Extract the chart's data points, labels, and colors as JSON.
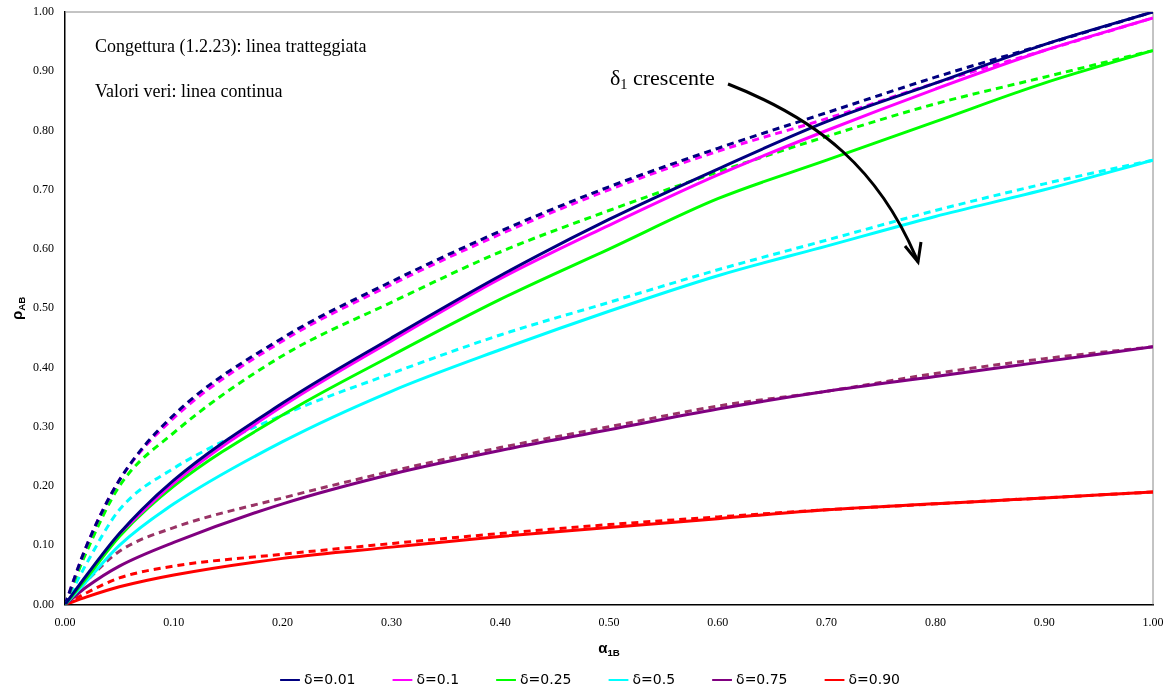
{
  "chart_data": {
    "type": "line",
    "xlabel": "α$_{1B}$",
    "ylabel": "ρ$_{AB}$",
    "x": [
      0,
      0.02,
      0.05,
      0.1,
      0.2,
      0.3,
      0.4,
      0.5,
      0.6,
      0.7,
      0.8,
      0.9,
      1.0
    ],
    "xlim": [
      0,
      1
    ],
    "ylim": [
      0,
      1
    ],
    "xticks": [
      {
        "value": 0,
        "label": "0.00"
      },
      {
        "value": 0.1,
        "label": "0.10"
      },
      {
        "value": 0.2,
        "label": "0.20"
      },
      {
        "value": 0.3,
        "label": "0.30"
      },
      {
        "value": 0.4,
        "label": "0.40"
      },
      {
        "value": 0.5,
        "label": "0.50"
      },
      {
        "value": 0.6,
        "label": "0.60"
      },
      {
        "value": 0.7,
        "label": "0.70"
      },
      {
        "value": 0.8,
        "label": "0.80"
      },
      {
        "value": 0.9,
        "label": "0.90"
      },
      {
        "value": 1,
        "label": "1.00"
      }
    ],
    "yticks": [
      {
        "value": 0,
        "label": "0.00"
      },
      {
        "value": 0.1,
        "label": "0.10"
      },
      {
        "value": 0.2,
        "label": "0.20"
      },
      {
        "value": 0.3,
        "label": "0.30"
      },
      {
        "value": 0.4,
        "label": "0.40"
      },
      {
        "value": 0.5,
        "label": "0.50"
      },
      {
        "value": 0.6,
        "label": "0.60"
      },
      {
        "value": 0.7,
        "label": "0.70"
      },
      {
        "value": 0.8,
        "label": "0.80"
      },
      {
        "value": 0.9,
        "label": "0.90"
      },
      {
        "value": 1,
        "label": "1.00"
      }
    ],
    "grid": false,
    "legend": "bottom",
    "marker": "none",
    "annotations": [
      "Congettura (1.2.23): linea tratteggiata",
      "Valori veri: linea continua",
      "δ$_{1}$ crescente"
    ],
    "series": [
      {
        "name": "δ=0.01",
        "color": "#000080",
        "line_style": "solid",
        "values": [
          0,
          0.05,
          0.12,
          0.21,
          0.34,
          0.45,
          0.555,
          0.65,
          0.735,
          0.815,
          0.88,
          0.945,
          1.0
        ]
      },
      {
        "name": "δ=0.1",
        "color": "#ff00ff",
        "line_style": "solid",
        "values": [
          null,
          null,
          0.12,
          0.205,
          0.335,
          0.445,
          0.55,
          0.64,
          0.725,
          0.8,
          0.87,
          0.935,
          0.99
        ]
      },
      {
        "name": "δ=0.25",
        "color": "#00ff00",
        "line_style": "solid",
        "values": [
          0,
          0.045,
          0.115,
          0.2,
          0.32,
          0.42,
          0.515,
          0.6,
          0.685,
          0.75,
          0.815,
          0.88,
          0.935
        ]
      },
      {
        "name": "δ=0.5",
        "color": "#00ffff",
        "line_style": "solid",
        "values": [
          0,
          0.04,
          0.1,
          0.17,
          0.275,
          0.36,
          0.43,
          0.495,
          0.555,
          0.605,
          0.655,
          0.7,
          0.75
        ]
      },
      {
        "name": "δ=0.75",
        "color": "#800080",
        "line_style": "solid",
        "values": [
          0,
          0.03,
          0.065,
          0.105,
          0.17,
          0.22,
          0.26,
          0.295,
          0.33,
          0.36,
          0.385,
          0.41,
          0.435
        ]
      },
      {
        "name": "δ=0.90",
        "color": "#ff0000",
        "line_style": "solid",
        "values": [
          0,
          0.013,
          0.03,
          0.05,
          0.078,
          0.097,
          0.115,
          0.13,
          0.145,
          0.16,
          0.17,
          0.18,
          0.19
        ]
      },
      {
        "color": "#000080",
        "line_style": "dashed",
        "values": [
          0,
          0.1,
          0.21,
          0.32,
          0.45,
          0.545,
          0.63,
          0.705,
          0.77,
          0.83,
          0.89,
          0.945,
          1.0
        ]
      },
      {
        "color": "#ff00ff",
        "line_style": "dashed",
        "values": [
          0,
          0.1,
          0.21,
          0.315,
          0.445,
          0.54,
          0.625,
          0.7,
          0.765,
          0.82,
          0.88,
          0.935,
          0.99
        ]
      },
      {
        "color": "#00ff00",
        "line_style": "dashed",
        "values": [
          0,
          0.09,
          0.2,
          0.29,
          0.42,
          0.51,
          0.595,
          0.665,
          0.73,
          0.79,
          0.845,
          0.89,
          0.935
        ]
      },
      {
        "color": "#00ffff",
        "line_style": "dashed",
        "values": [
          0,
          0.07,
          0.16,
          0.23,
          0.32,
          0.39,
          0.455,
          0.51,
          0.565,
          0.615,
          0.665,
          0.71,
          0.75
        ]
      },
      {
        "color": "#993366",
        "line_style": "dashed",
        "values": [
          0,
          0.04,
          0.09,
          0.13,
          0.18,
          0.225,
          0.265,
          0.3,
          0.335,
          0.36,
          0.39,
          0.415,
          0.435
        ]
      },
      {
        "color": "#ff0000",
        "line_style": "dashed",
        "values": [
          0,
          0.02,
          0.045,
          0.065,
          0.085,
          0.103,
          0.12,
          0.135,
          0.148,
          0.16,
          0.17,
          0.18,
          0.19
        ]
      }
    ]
  }
}
